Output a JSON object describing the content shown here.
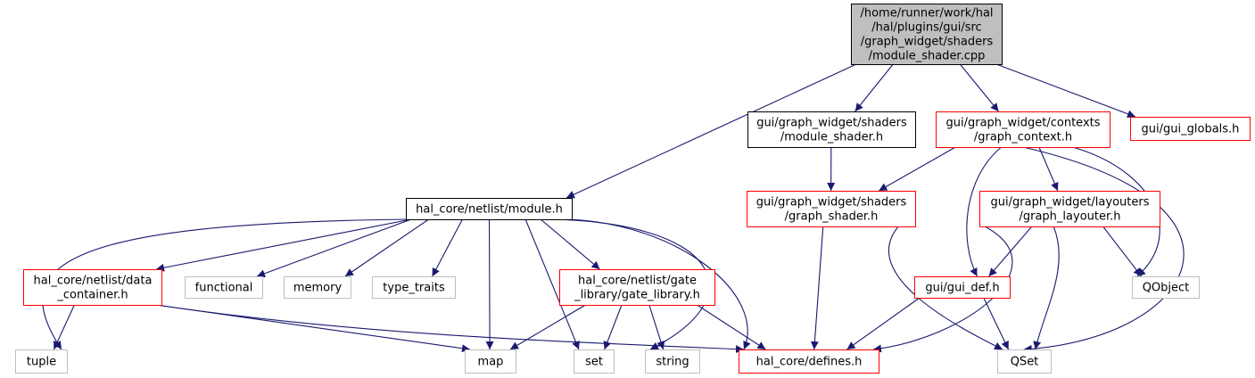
{
  "colors": {
    "edge": "#191970",
    "root_fill": "#bfbfbf",
    "root_border": "#000000",
    "black_border": "#000000",
    "red_border": "#ff0000",
    "gray_border": "#bfbfbf",
    "node_fill": "#ffffff",
    "label_text": "#000000",
    "gray_label_text": "#404040"
  },
  "nodes": {
    "root": {
      "lines": [
        "/home/runner/work/hal",
        "/hal/plugins/gui/src",
        "/graph_widget/shaders",
        "/module_shader.cpp"
      ],
      "style": "root"
    },
    "module_shader_h": {
      "lines": [
        "gui/graph_widget/shaders",
        "/module_shader.h"
      ],
      "style": "black"
    },
    "graph_context_h": {
      "lines": [
        "gui/graph_widget/contexts",
        "/graph_context.h"
      ],
      "style": "red"
    },
    "gui_globals_h": {
      "lines": [
        "gui/gui_globals.h"
      ],
      "style": "red"
    },
    "module_h": {
      "lines": [
        "hal_core/netlist/module.h"
      ],
      "style": "black"
    },
    "graph_shader_h": {
      "lines": [
        "gui/graph_widget/shaders",
        "/graph_shader.h"
      ],
      "style": "red"
    },
    "graph_layouter_h": {
      "lines": [
        "gui/graph_widget/layouters",
        "/graph_layouter.h"
      ],
      "style": "red"
    },
    "data_container_h": {
      "lines": [
        "hal_core/netlist/data",
        "_container.h"
      ],
      "style": "red"
    },
    "functional": {
      "lines": [
        "functional"
      ],
      "style": "gray"
    },
    "memory": {
      "lines": [
        "memory"
      ],
      "style": "gray"
    },
    "type_traits": {
      "lines": [
        "type_traits"
      ],
      "style": "gray"
    },
    "gate_library_h": {
      "lines": [
        "hal_core/netlist/gate",
        "_library/gate_library.h"
      ],
      "style": "red"
    },
    "gui_def_h": {
      "lines": [
        "gui/gui_def.h"
      ],
      "style": "red"
    },
    "qobject": {
      "lines": [
        "QObject"
      ],
      "style": "gray"
    },
    "tuple": {
      "lines": [
        "tuple"
      ],
      "style": "gray"
    },
    "map": {
      "lines": [
        "map"
      ],
      "style": "gray"
    },
    "set": {
      "lines": [
        "set"
      ],
      "style": "gray"
    },
    "string": {
      "lines": [
        "string"
      ],
      "style": "gray"
    },
    "defines_h": {
      "lines": [
        "hal_core/defines.h"
      ],
      "style": "red"
    },
    "qset": {
      "lines": [
        "QSet"
      ],
      "style": "gray"
    }
  },
  "edges": [
    [
      "root",
      "module_shader_h"
    ],
    [
      "root",
      "graph_context_h"
    ],
    [
      "root",
      "gui_globals_h"
    ],
    [
      "root",
      "module_h"
    ],
    [
      "module_shader_h",
      "graph_shader_h"
    ],
    [
      "graph_context_h",
      "graph_shader_h"
    ],
    [
      "graph_context_h",
      "graph_layouter_h"
    ],
    [
      "graph_context_h",
      "gui_def_h"
    ],
    [
      "graph_context_h",
      "qobject"
    ],
    [
      "graph_context_h",
      "qset"
    ],
    [
      "module_h",
      "data_container_h"
    ],
    [
      "module_h",
      "functional"
    ],
    [
      "module_h",
      "memory"
    ],
    [
      "module_h",
      "type_traits"
    ],
    [
      "module_h",
      "gate_library_h"
    ],
    [
      "module_h",
      "tuple"
    ],
    [
      "module_h",
      "map"
    ],
    [
      "module_h",
      "set"
    ],
    [
      "module_h",
      "string"
    ],
    [
      "module_h",
      "defines_h"
    ],
    [
      "graph_shader_h",
      "defines_h"
    ],
    [
      "graph_shader_h",
      "qset"
    ],
    [
      "graph_layouter_h",
      "gui_def_h"
    ],
    [
      "graph_layouter_h",
      "qobject"
    ],
    [
      "graph_layouter_h",
      "defines_h"
    ],
    [
      "graph_layouter_h",
      "qset"
    ],
    [
      "data_container_h",
      "tuple"
    ],
    [
      "data_container_h",
      "map"
    ],
    [
      "data_container_h",
      "defines_h"
    ],
    [
      "gate_library_h",
      "map"
    ],
    [
      "gate_library_h",
      "set"
    ],
    [
      "gate_library_h",
      "string"
    ],
    [
      "gate_library_h",
      "defines_h"
    ],
    [
      "gui_def_h",
      "defines_h"
    ],
    [
      "gui_def_h",
      "qset"
    ]
  ]
}
